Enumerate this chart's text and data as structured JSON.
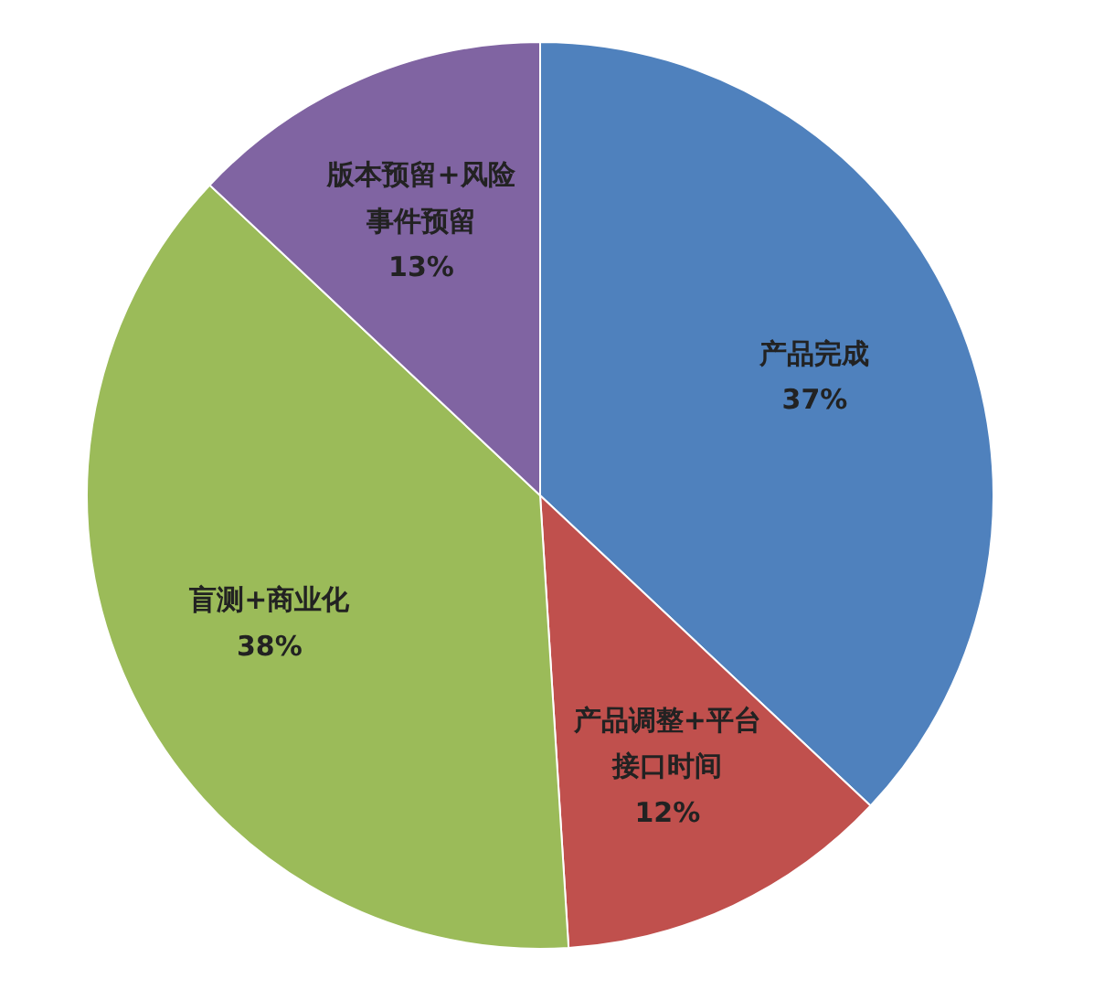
{
  "chart_data": {
    "type": "pie",
    "categories": [
      "产品完成",
      "产品调整+平台接口时间",
      "盲测+商业化",
      "版本预留+风险事件预留"
    ],
    "values": [
      37,
      12,
      38,
      13
    ],
    "colors": [
      "#4f81bd",
      "#c0504d",
      "#9bbb59",
      "#8064a2"
    ],
    "value_labels": [
      "37%",
      "12%",
      "38%",
      "13%"
    ]
  }
}
